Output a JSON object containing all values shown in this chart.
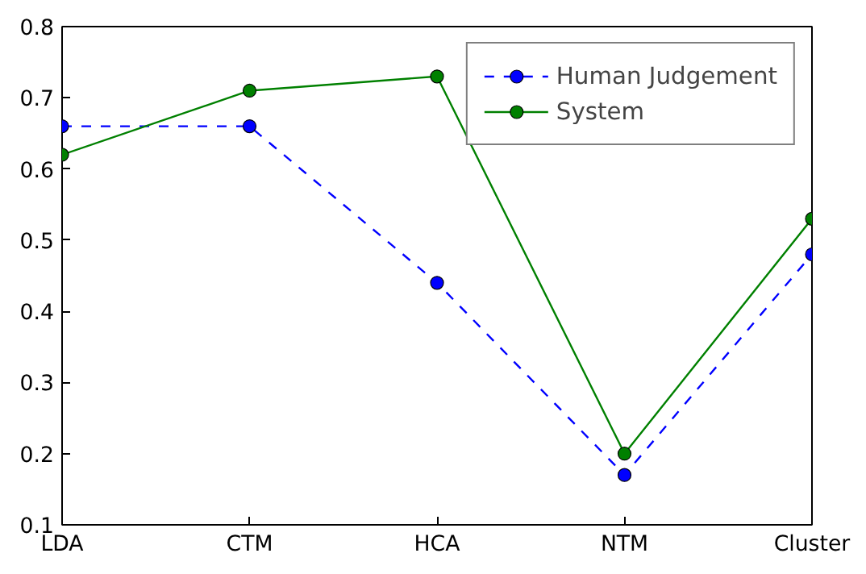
{
  "chart_data": {
    "type": "line",
    "categories": [
      "LDA",
      "CTM",
      "HCA",
      "NTM",
      "Cluster"
    ],
    "series": [
      {
        "name": "Human Judgement",
        "color": "#0000ff",
        "values": [
          0.66,
          0.66,
          0.44,
          0.17,
          0.48
        ],
        "line_style": "dashed"
      },
      {
        "name": "System",
        "color": "#008000",
        "values": [
          0.62,
          0.71,
          0.73,
          0.2,
          0.53
        ],
        "line_style": "solid"
      }
    ],
    "ylim": [
      0.1,
      0.8
    ],
    "yticks": [
      0.1,
      0.2,
      0.3,
      0.4,
      0.5,
      0.6,
      0.7,
      0.8
    ],
    "grid": false,
    "legend": "top right",
    "marker": "circle"
  }
}
